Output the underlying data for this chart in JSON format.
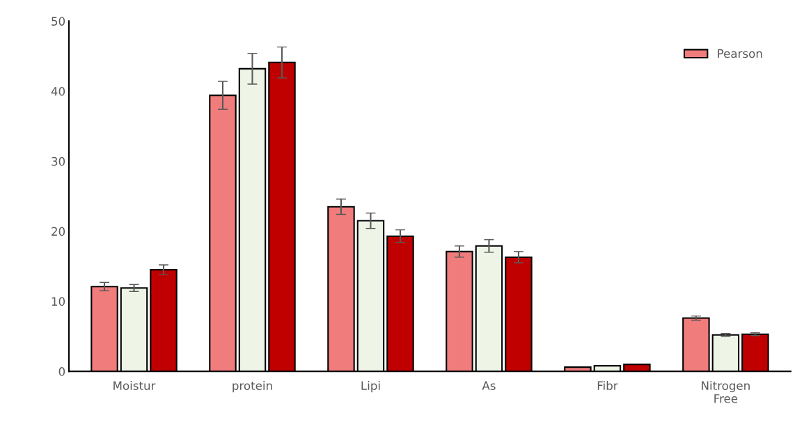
{
  "chart_data": {
    "type": "bar",
    "categories": [
      "Moistur",
      "protein",
      "Lipi",
      "As",
      "Fibr",
      "Nitrogen\nFree"
    ],
    "series": [
      {
        "name": "Pearson",
        "color": "#f07c7c",
        "values": [
          12.1,
          39.4,
          23.5,
          17.1,
          0.6,
          7.6
        ],
        "errors": [
          0.6,
          2.0,
          1.1,
          0.8,
          null,
          0.3
        ]
      },
      {
        "color": "#eef4e6",
        "values": [
          11.9,
          43.2,
          21.5,
          17.9,
          0.8,
          5.2
        ],
        "errors": [
          0.5,
          2.2,
          1.1,
          0.9,
          null,
          0.2
        ]
      },
      {
        "color": "#c00000",
        "values": [
          14.5,
          44.1,
          19.3,
          16.3,
          1.0,
          5.3
        ],
        "errors": [
          0.7,
          2.2,
          0.9,
          0.8,
          null,
          0.2
        ]
      }
    ],
    "ylim": [
      0,
      50
    ],
    "yticks": [
      0,
      10,
      20,
      30,
      40,
      50
    ],
    "grid": false,
    "legend": "top right"
  }
}
